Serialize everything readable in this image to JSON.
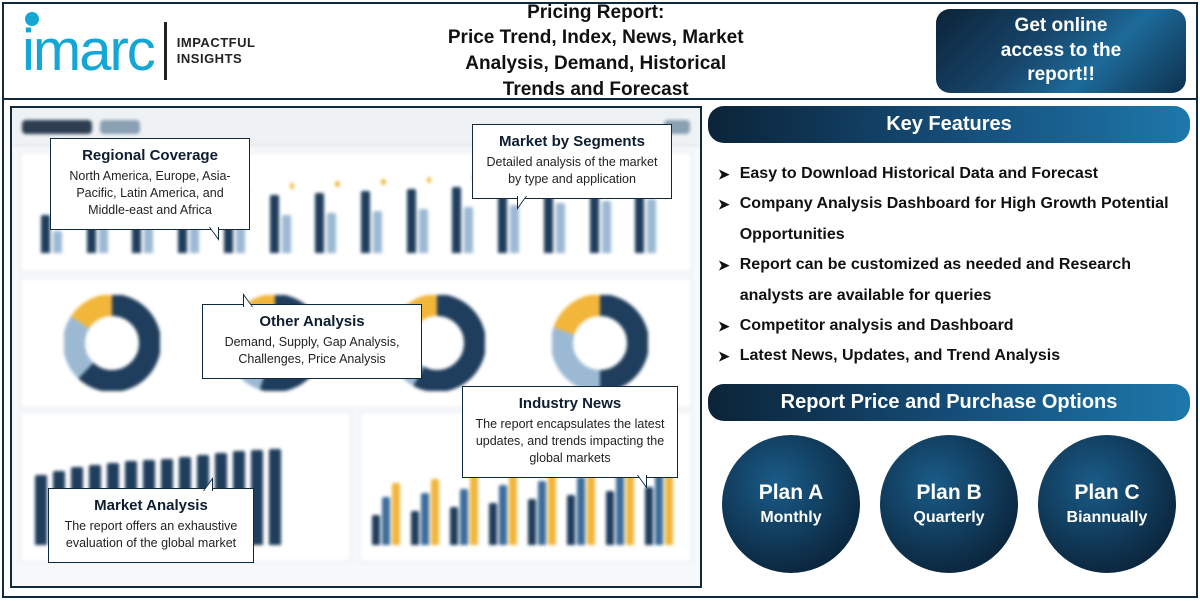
{
  "header": {
    "logo_text": "imarc",
    "tagline_line1": "IMPACTFUL",
    "tagline_line2": "INSIGHTS",
    "title_line1": "Pricing Report:",
    "title_line2": "Price Trend, Index, News, Market",
    "title_line3": "Analysis, Demand, Historical",
    "title_line4": "Trends and Forecast",
    "cta_line1": "Get online",
    "cta_line2": "access to the",
    "cta_line3": "report!!"
  },
  "callouts": {
    "regional": {
      "title": "Regional Coverage",
      "body": "North America, Europe, Asia-Pacific, Latin America, and Middle-east and Africa"
    },
    "segments": {
      "title": "Market by Segments",
      "body": "Detailed analysis of the market by type and application"
    },
    "other": {
      "title": "Other Analysis",
      "body": "Demand, Supply, Gap Analysis, Challenges, Price Analysis"
    },
    "news": {
      "title": "Industry News",
      "body": "The report encapsulates the latest updates, and trends impacting the global markets"
    },
    "market": {
      "title": "Market Analysis",
      "body": "The report offers an exhaustive evaluation of the global market"
    }
  },
  "right": {
    "key_features_header": "Key Features",
    "features": [
      "Easy to Download Historical Data and Forecast",
      "Company Analysis Dashboard for High Growth Potential Opportunities",
      "Report can be customized as needed and Research analysts are available for queries",
      "Competitor analysis and Dashboard",
      "Latest News, Updates, and Trend Analysis"
    ],
    "purchase_header": "Report Price and Purchase Options",
    "plans": [
      {
        "name": "Plan A",
        "freq": "Monthly"
      },
      {
        "name": "Plan B",
        "freq": "Quarterly"
      },
      {
        "name": "Plan C",
        "freq": "Biannually"
      }
    ]
  },
  "dashboard": {
    "colors": {
      "navy": "#1f3d5c",
      "blue": "#3d6d9c",
      "light": "#9cb9d4",
      "yellow": "#f2b63a",
      "pale": "#e3ecf3"
    },
    "top_bars": {
      "heights_navy": [
        38,
        42,
        46,
        50,
        54,
        58,
        60,
        62,
        64,
        66,
        68,
        70,
        72,
        74
      ],
      "heights_light": [
        22,
        26,
        30,
        32,
        36,
        38,
        40,
        42,
        44,
        46,
        48,
        50,
        52,
        54
      ]
    },
    "donuts": [
      {
        "navy": 62,
        "light": 22,
        "yellow": 16
      },
      {
        "navy": 55,
        "light": 28,
        "yellow": 17
      },
      {
        "navy": 58,
        "light": 24,
        "yellow": 18
      },
      {
        "navy": 50,
        "light": 30,
        "yellow": 20
      }
    ],
    "lower_left_bars": [
      70,
      74,
      78,
      80,
      82,
      84,
      85,
      86,
      88,
      90,
      92,
      94,
      95,
      96
    ],
    "lower_right_groups": [
      [
        30,
        48,
        62
      ],
      [
        34,
        52,
        66
      ],
      [
        38,
        56,
        70
      ],
      [
        42,
        60,
        74
      ],
      [
        46,
        64,
        78
      ],
      [
        50,
        68,
        82
      ],
      [
        54,
        72,
        86
      ],
      [
        58,
        76,
        90
      ]
    ]
  },
  "style": {
    "brand_cyan": "#14a7d6",
    "frame_border": "#0f2a3f",
    "gradient_dark": "#0b2338",
    "gradient_light": "#1d78aa"
  }
}
